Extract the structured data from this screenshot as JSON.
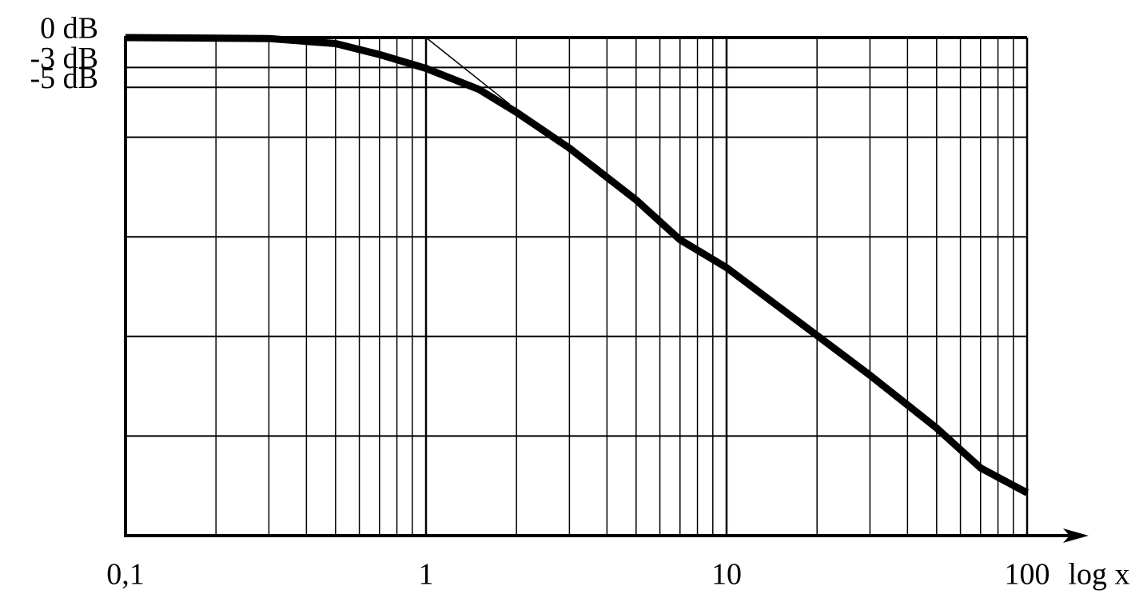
{
  "chart_data": {
    "type": "line",
    "x_label": "log x",
    "xlog": true,
    "xlim": [
      0.1,
      100
    ],
    "xticks": [
      {
        "value": 0.1,
        "label": "0,1"
      },
      1,
      10,
      100
    ],
    "xgrid": [
      0.2,
      0.3,
      0.4,
      0.5,
      0.6,
      0.7,
      0.8,
      0.9,
      2,
      3,
      4,
      5,
      6,
      7,
      8,
      9,
      20,
      30,
      40,
      50,
      60,
      70,
      80,
      90
    ],
    "ylim": [
      -50,
      0
    ],
    "yticks": [
      {
        "value": 0,
        "label": "0 dB"
      },
      {
        "value": -3,
        "label": "-3 dB"
      },
      {
        "value": -5,
        "label": "-5 dB"
      }
    ],
    "ygrid": [
      -10,
      -20,
      -30,
      -40
    ],
    "grid": true,
    "series": [
      {
        "color": "#000000",
        "width": 9,
        "x": [
          0.1,
          0.3,
          0.5,
          0.7,
          1,
          1.5,
          2,
          3,
          5,
          7,
          10,
          20,
          30,
          50,
          70,
          100
        ],
        "values": [
          0,
          -0.1,
          -0.6,
          -1.7,
          -3.1,
          -5.2,
          -7.5,
          -11.1,
          -16.3,
          -20.3,
          -23.1,
          -29.9,
          -33.9,
          -39.2,
          -43.2,
          -45.7
        ]
      },
      {
        "color": "#000000",
        "width": 1.5,
        "x": [
          1,
          1.9
        ],
        "values": [
          0,
          -6.7
        ]
      }
    ]
  }
}
